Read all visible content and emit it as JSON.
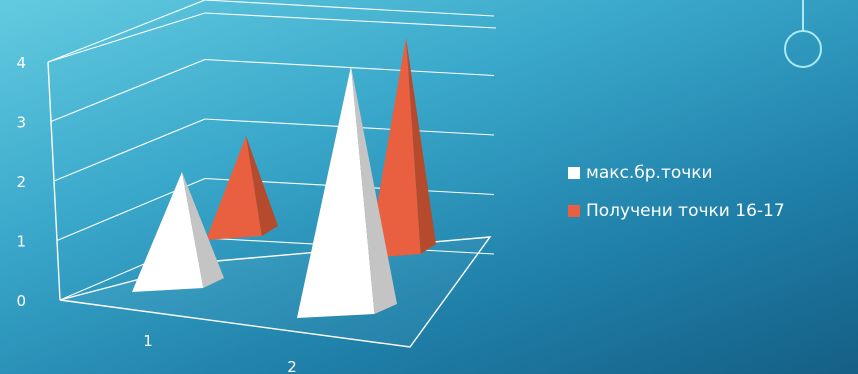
{
  "chart_data": {
    "type": "bar",
    "shape": "3d-pyramid",
    "categories": [
      "1",
      "2"
    ],
    "y_ticks": [
      "0",
      "1",
      "2",
      "3",
      "4"
    ],
    "ylim": [
      0,
      4
    ],
    "series": [
      {
        "name": "макс.бр.точки",
        "values": [
          2,
          4
        ],
        "color": "#ffffff"
      },
      {
        "name": "Получени точки   16-17",
        "values": [
          2,
          4.5
        ],
        "color": "#e8603f"
      }
    ],
    "grid": true,
    "legend_position": "right"
  },
  "colors": {
    "background_top": "#63cbe0",
    "background_bottom": "#155f86",
    "series_white": "#ffffff",
    "series_orange": "#e8603f",
    "accent": "#a9eaf5"
  },
  "decoration": {
    "icon": "ring-pendant-icon"
  }
}
